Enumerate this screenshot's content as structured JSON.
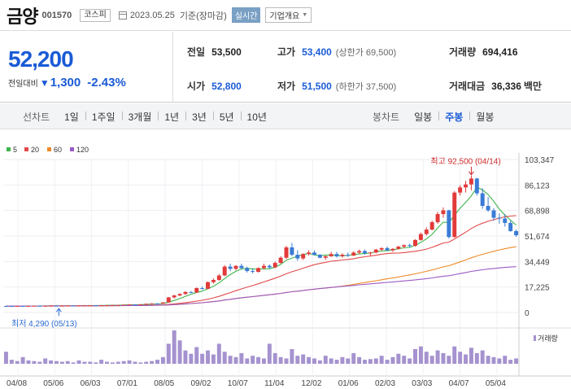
{
  "header": {
    "stock_name": "금양",
    "stock_code": "001570",
    "market": "코스피",
    "date": "2023.05.25",
    "date_suffix": "기준(장마감)",
    "realtime_label": "실시간",
    "company_overview": "기업개요"
  },
  "summary": {
    "price": "52,200",
    "change_label": "전일대비",
    "change_amount": "1,300",
    "change_percent": "-2.43%",
    "prev_label": "전일",
    "prev_value": "53,500",
    "high_label": "고가",
    "high_value": "53,400",
    "upper_limit": "(상한가 69,500)",
    "volume_label": "거래량",
    "volume_value": "694,416",
    "open_label": "시가",
    "open_value": "52,800",
    "low_label": "저가",
    "low_value": "51,500",
    "lower_limit": "(하한가 37,500)",
    "amount_label": "거래대금",
    "amount_value": "36,336",
    "amount_unit": "백만"
  },
  "line_tabs": {
    "title": "선차트",
    "items": [
      "1일",
      "1주일",
      "3개월",
      "1년",
      "3년",
      "5년",
      "10년"
    ]
  },
  "candle_tabs": {
    "title": "봉차트",
    "items": [
      "일봉",
      "주봉",
      "월봉"
    ],
    "selected": 1
  },
  "colors": {
    "up": "#e23a3a",
    "down": "#3a7bd5",
    "blue_text": "#1a5bd6",
    "ma5": "#3cb64a",
    "ma20": "#e24a4a",
    "ma60": "#f08a2a",
    "ma120": "#9a5bc4",
    "volume": "#a592cf"
  },
  "chart_data": {
    "type": "candlestick",
    "interval": "weekly",
    "legend": [
      {
        "label": "5",
        "color": "#3cb64a"
      },
      {
        "label": "20",
        "color": "#e24a4a"
      },
      {
        "label": "60",
        "color": "#f08a2a"
      },
      {
        "label": "120",
        "color": "#9a5bc4"
      }
    ],
    "y_ticks": [
      0,
      17225,
      34449,
      51674,
      68898,
      86123,
      103347
    ],
    "y_tick_labels": [
      "0",
      "17,225",
      "34,449",
      "51,674",
      "68,898",
      "86,123",
      "103,347"
    ],
    "ylim": [
      0,
      103347
    ],
    "x_labels": [
      "04/08",
      "05/06",
      "06/03",
      "07/01",
      "08/05",
      "09/02",
      "10/07",
      "11/04",
      "12/02",
      "01/06",
      "02/03",
      "03/03",
      "04/07",
      "05/04"
    ],
    "max_annotation": "최고 92,500 (04/14)",
    "min_annotation": "최저 4,290 (05/13)",
    "volume_label": "거래량",
    "candles": [
      [
        4400,
        4450,
        4300,
        4350
      ],
      [
        4350,
        4400,
        4290,
        4320
      ],
      [
        4320,
        4450,
        4300,
        4420
      ],
      [
        4420,
        4500,
        4350,
        4380
      ],
      [
        4380,
        4480,
        4350,
        4450
      ],
      [
        4450,
        4550,
        4400,
        4500
      ],
      [
        4500,
        4550,
        4400,
        4420
      ],
      [
        4420,
        4500,
        4380,
        4480
      ],
      [
        4480,
        4600,
        4450,
        4560
      ],
      [
        4560,
        4620,
        4480,
        4500
      ],
      [
        4500,
        4600,
        4450,
        4580
      ],
      [
        4580,
        4700,
        4550,
        4650
      ],
      [
        4650,
        4700,
        4550,
        4600
      ],
      [
        4600,
        4750,
        4580,
        4700
      ],
      [
        4700,
        4800,
        4650,
        4750
      ],
      [
        4750,
        4850,
        4700,
        4820
      ],
      [
        4820,
        4900,
        4700,
        4760
      ],
      [
        4760,
        4900,
        4740,
        4880
      ],
      [
        4880,
        5000,
        4850,
        4950
      ],
      [
        4950,
        5100,
        4900,
        5050
      ],
      [
        5050,
        5150,
        5000,
        5100
      ],
      [
        5100,
        5300,
        5050,
        5250
      ],
      [
        5250,
        5500,
        5200,
        5450
      ],
      [
        5450,
        5600,
        5300,
        5350
      ],
      [
        5350,
        5500,
        5300,
        5480
      ],
      [
        5480,
        6000,
        5450,
        5900
      ],
      [
        5900,
        6200,
        5800,
        6100
      ],
      [
        6100,
        6300,
        5900,
        6000
      ],
      [
        6000,
        7000,
        5950,
        6800
      ],
      [
        6800,
        10500,
        6700,
        10200
      ],
      [
        10200,
        12000,
        9500,
        11500
      ],
      [
        11500,
        13000,
        11000,
        12500
      ],
      [
        12500,
        14500,
        12000,
        13800
      ],
      [
        13800,
        14500,
        13000,
        13500
      ],
      [
        13500,
        17000,
        13200,
        16500
      ],
      [
        16500,
        17500,
        15500,
        16000
      ],
      [
        16000,
        21000,
        15800,
        20500
      ],
      [
        20500,
        23000,
        19500,
        22000
      ],
      [
        22000,
        26000,
        21500,
        25000
      ],
      [
        25000,
        32000,
        24500,
        31000
      ],
      [
        31000,
        33000,
        28000,
        29500
      ],
      [
        29500,
        32000,
        28500,
        31500
      ],
      [
        31500,
        33000,
        29000,
        30000
      ],
      [
        30000,
        31000,
        27000,
        28000
      ],
      [
        28000,
        30000,
        26500,
        27500
      ],
      [
        27500,
        30500,
        27000,
        30000
      ],
      [
        30000,
        33000,
        29000,
        31500
      ],
      [
        31500,
        32500,
        29500,
        30500
      ],
      [
        30500,
        34500,
        30000,
        33500
      ],
      [
        33500,
        38000,
        33000,
        37000
      ],
      [
        37000,
        45000,
        36000,
        44000
      ],
      [
        44000,
        47000,
        38000,
        39000
      ],
      [
        39000,
        42000,
        35000,
        36500
      ],
      [
        36500,
        40000,
        35500,
        39500
      ],
      [
        39500,
        42000,
        38500,
        40500
      ],
      [
        40500,
        42000,
        38500,
        39000
      ],
      [
        39000,
        39500,
        36500,
        37000
      ],
      [
        37000,
        38500,
        35500,
        38000
      ],
      [
        38000,
        41000,
        37500,
        39500
      ],
      [
        39500,
        41000,
        37000,
        38000
      ],
      [
        38000,
        40000,
        37000,
        39000
      ],
      [
        39000,
        40500,
        37500,
        38500
      ],
      [
        38500,
        41500,
        38000,
        40500
      ],
      [
        40500,
        42500,
        39500,
        41500
      ],
      [
        41500,
        42500,
        39000,
        40000
      ],
      [
        40000,
        41000,
        38500,
        40500
      ],
      [
        40500,
        43000,
        40000,
        42500
      ],
      [
        42500,
        44000,
        41500,
        43500
      ],
      [
        43500,
        44500,
        41500,
        42000
      ],
      [
        42000,
        43500,
        41000,
        43000
      ],
      [
        43000,
        45000,
        42500,
        44500
      ],
      [
        44500,
        46000,
        43500,
        45500
      ],
      [
        45500,
        46500,
        44000,
        45000
      ],
      [
        45000,
        49500,
        44500,
        49000
      ],
      [
        49000,
        54000,
        48500,
        53000
      ],
      [
        53000,
        57500,
        52000,
        56000
      ],
      [
        56000,
        62000,
        55500,
        61000
      ],
      [
        61000,
        68000,
        60000,
        66500
      ],
      [
        66500,
        71000,
        64000,
        69000
      ],
      [
        69000,
        69500,
        50000,
        51000
      ],
      [
        51000,
        82000,
        50500,
        81000
      ],
      [
        81000,
        86000,
        79000,
        84500
      ],
      [
        84500,
        89000,
        81000,
        86500
      ],
      [
        86500,
        92500,
        82500,
        90500
      ],
      [
        90500,
        91000,
        79000,
        80500
      ],
      [
        80500,
        84000,
        70000,
        72000
      ],
      [
        72000,
        78000,
        68000,
        69000
      ],
      [
        69000,
        70500,
        62000,
        64000
      ],
      [
        64000,
        67000,
        60000,
        63500
      ],
      [
        63500,
        66500,
        58000,
        60500
      ],
      [
        60500,
        62000,
        54500,
        55000
      ],
      [
        55000,
        56000,
        51000,
        52200
      ]
    ],
    "volumes": [
      18,
      6,
      4,
      10,
      5,
      4,
      3,
      8,
      5,
      4,
      3,
      4,
      2,
      5,
      3,
      3,
      2,
      6,
      3,
      2,
      3,
      4,
      5,
      3,
      2,
      3,
      4,
      6,
      10,
      30,
      50,
      35,
      20,
      15,
      25,
      15,
      20,
      14,
      30,
      18,
      12,
      10,
      16,
      8,
      12,
      10,
      8,
      30,
      16,
      10,
      8,
      22,
      12,
      14,
      10,
      8,
      5,
      12,
      8,
      6,
      10,
      8,
      16,
      10,
      6,
      7,
      8,
      12,
      6,
      10,
      15,
      12,
      8,
      22,
      26,
      18,
      12,
      20,
      16,
      12,
      26,
      18,
      14,
      24,
      16,
      20,
      12,
      10,
      8,
      12,
      6,
      8
    ],
    "ma_note": "moving averages computed from candles"
  }
}
